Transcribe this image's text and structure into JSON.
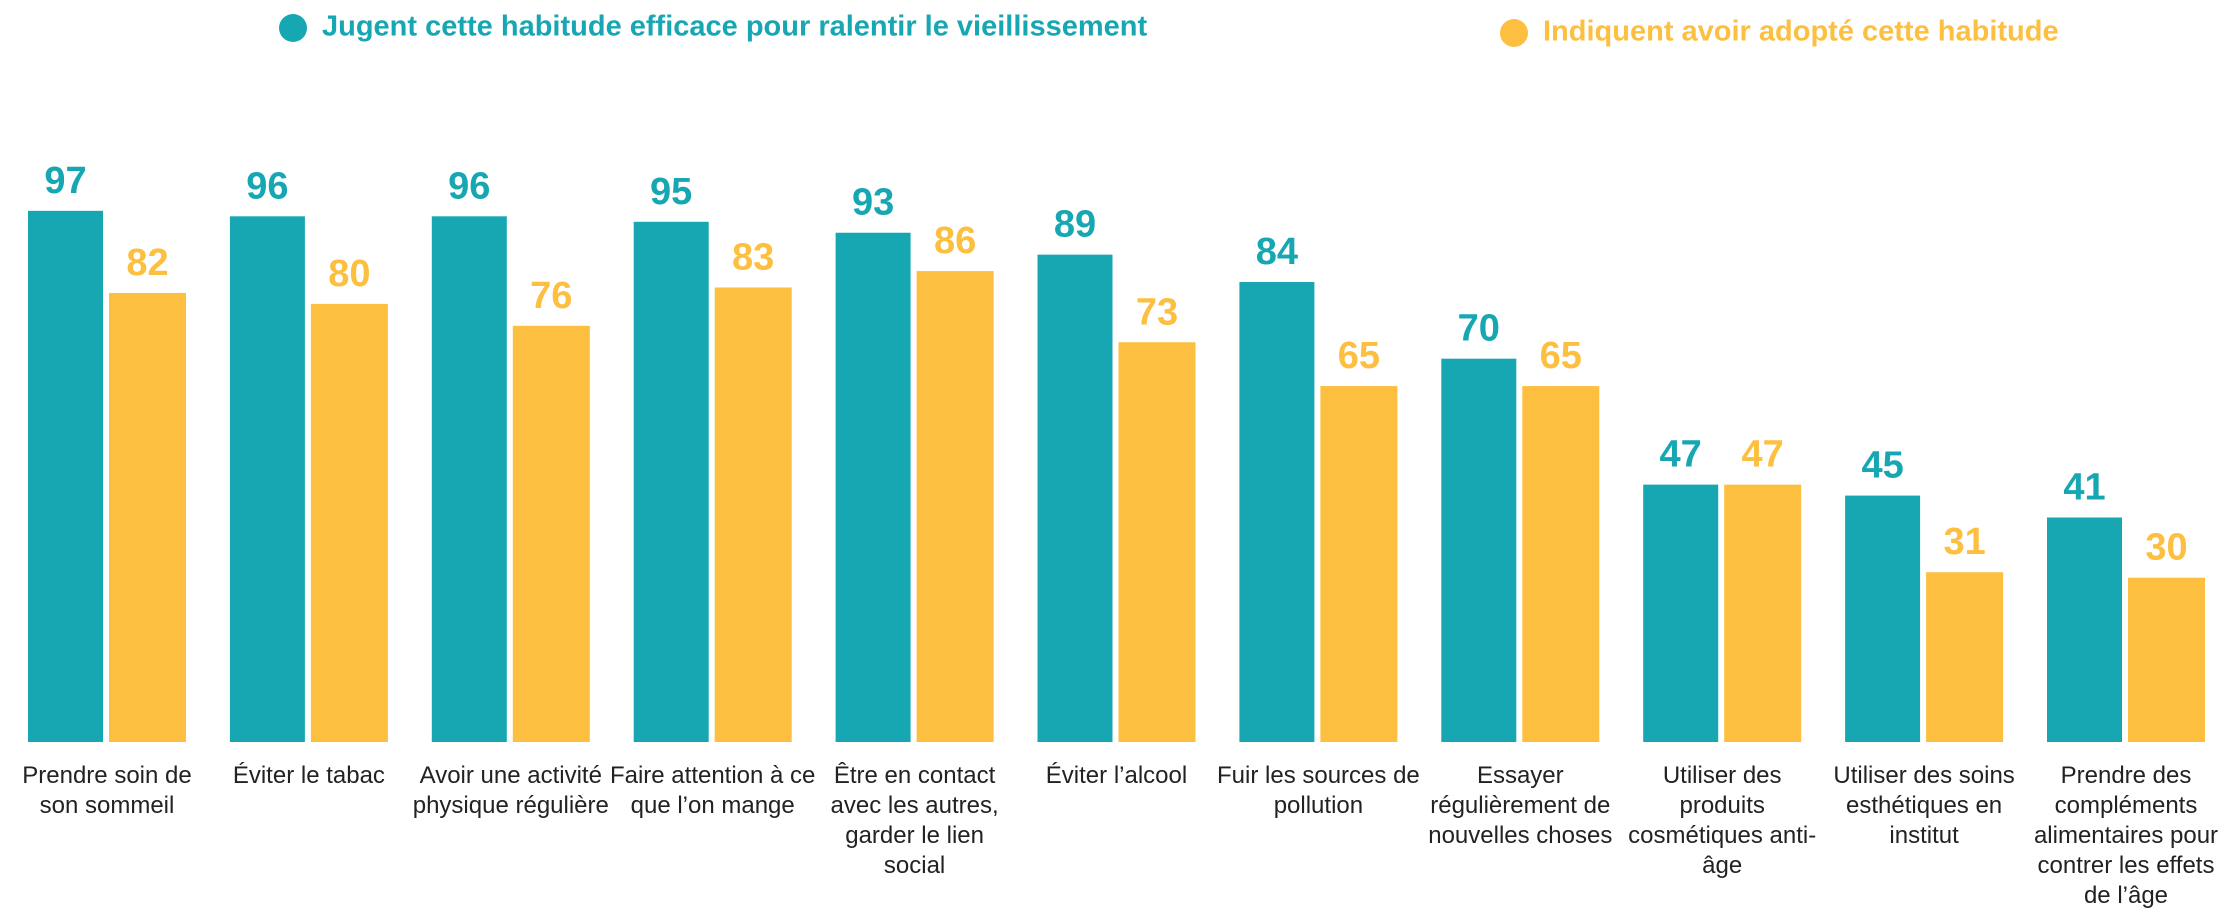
{
  "chart_data": {
    "type": "bar",
    "categories": [
      "Prendre soin de son sommeil",
      "Éviter le tabac",
      "Avoir une activité physique régulière",
      "Faire attention à ce que l’on mange",
      "Être en contact avec les autres, garder le lien social",
      "Éviter l’alcool",
      "Fuir les sources de pollution",
      "Essayer régulièrement de nouvelles choses",
      "Utiliser des produits cosmétiques anti-âge",
      "Utiliser des soins esthétiques en institut",
      "Prendre des compléments alimentaires pour contrer les effets de l’âge"
    ],
    "series": [
      {
        "name": "Jugent cette habitude efficace pour ralentir  le vieillissement",
        "color": "#17a7b3",
        "values": [
          97,
          96,
          96,
          95,
          93,
          89,
          84,
          70,
          47,
          45,
          41
        ]
      },
      {
        "name": "Indiquent avoir adopté cette habitude",
        "color": "#fdbf3f",
        "values": [
          82,
          80,
          76,
          83,
          86,
          73,
          65,
          65,
          47,
          31,
          30
        ]
      }
    ]
  }
}
